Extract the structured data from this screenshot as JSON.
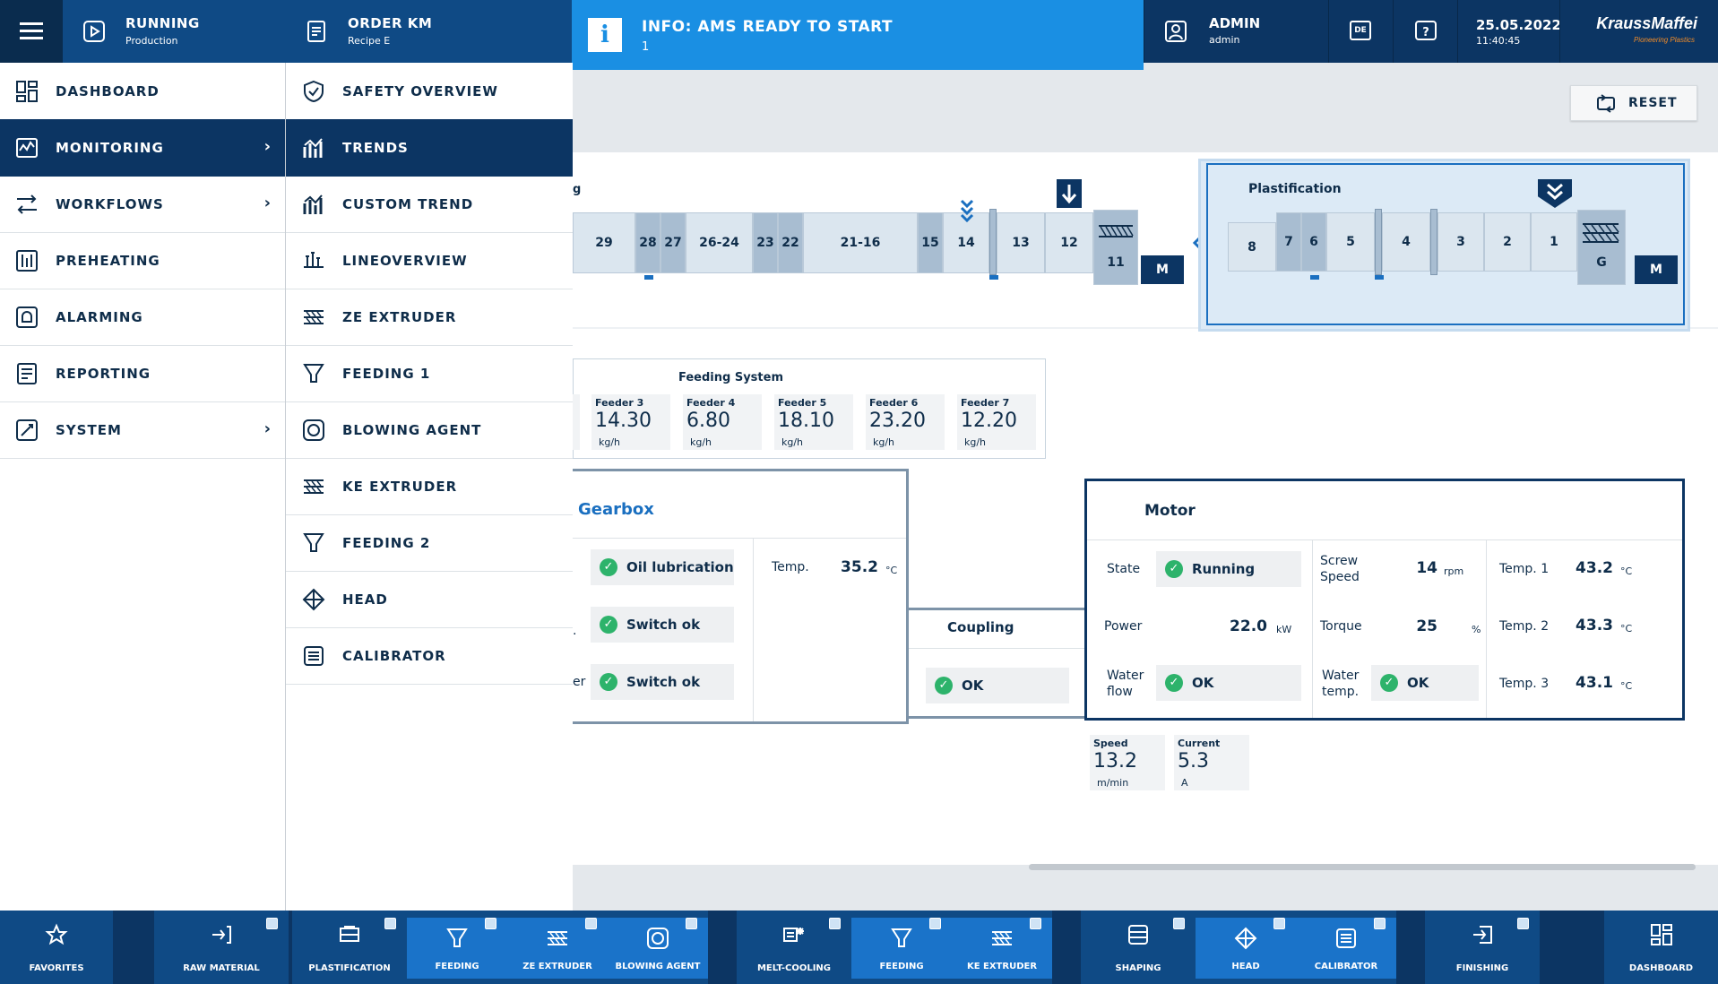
{
  "header": {
    "status": {
      "title": "RUNNING",
      "subtitle": "Production"
    },
    "order": {
      "title": "ORDER KM",
      "subtitle": "Recipe E"
    },
    "info": {
      "title": "INFO: AMS READY TO START",
      "subtitle": "1"
    },
    "user": {
      "title": "ADMIN",
      "subtitle": "admin"
    },
    "language": "DE",
    "date": "25.05.2022",
    "time": "11:40:45",
    "brand": "KraussMaffei",
    "brand_tagline": "Pioneering Plastics"
  },
  "main_menu": [
    {
      "label": "DASHBOARD",
      "icon": "dashboard-icon"
    },
    {
      "label": "MONITORING",
      "icon": "monitoring-icon",
      "selected": true
    },
    {
      "label": "WORKFLOWS",
      "icon": "workflows-icon"
    },
    {
      "label": "PREHEATING",
      "icon": "preheating-icon"
    },
    {
      "label": "ALARMING",
      "icon": "alarming-icon"
    },
    {
      "label": "REPORTING",
      "icon": "reporting-icon"
    },
    {
      "label": "SYSTEM",
      "icon": "system-icon"
    }
  ],
  "sub_menu": [
    {
      "label": "SAFETY OVERVIEW",
      "icon": "shield-check-icon"
    },
    {
      "label": "TRENDS",
      "icon": "trends-icon",
      "selected": true
    },
    {
      "label": "CUSTOM TREND",
      "icon": "custom-trend-icon"
    },
    {
      "label": "LINEOVERVIEW",
      "icon": "line-overview-icon"
    },
    {
      "label": "ZE EXTRUDER",
      "icon": "ze-extruder-icon"
    },
    {
      "label": "FEEDING 1",
      "icon": "feeding-icon"
    },
    {
      "label": "BLOWING AGENT",
      "icon": "blowing-agent-icon"
    },
    {
      "label": "KE EXTRUDER",
      "icon": "ke-extruder-icon"
    },
    {
      "label": "FEEDING 2",
      "icon": "feeding-icon"
    },
    {
      "label": "HEAD",
      "icon": "head-icon"
    },
    {
      "label": "CALIBRATOR",
      "icon": "calibrator-icon"
    }
  ],
  "reset_label": "RESET",
  "process": {
    "left_partial_label": "g",
    "zones_left": [
      "29",
      "28",
      "27",
      "26-24",
      "23",
      "22",
      "21-16",
      "15",
      "14",
      "13",
      "12",
      "11"
    ],
    "motor_label": "M",
    "plastification_title": "Plastification",
    "zones_right": [
      "8",
      "7",
      "6",
      "5",
      "4",
      "3",
      "2",
      "1",
      "G"
    ]
  },
  "feeding_system": {
    "title": "Feeding System",
    "feeders": [
      {
        "label": "Feeder 3",
        "value": "14.30",
        "unit": "kg/h"
      },
      {
        "label": "Feeder 4",
        "value": "6.80",
        "unit": "kg/h"
      },
      {
        "label": "Feeder 5",
        "value": "18.10",
        "unit": "kg/h"
      },
      {
        "label": "Feeder 6",
        "value": "23.20",
        "unit": "kg/h"
      },
      {
        "label": "Feeder 7",
        "value": "12.20",
        "unit": "kg/h"
      }
    ]
  },
  "gearbox": {
    "title": "Gearbox",
    "status": [
      "Oil lubrication",
      "Switch ok",
      "Switch ok"
    ],
    "partial_labels": [
      ".",
      "er"
    ],
    "temp_label": "Temp.",
    "temp_value": "35.2",
    "temp_unit": "°C"
  },
  "coupling": {
    "title": "Coupling",
    "status": "OK"
  },
  "motor": {
    "title": "Motor",
    "state_label": "State",
    "state_value": "Running",
    "power_label": "Power",
    "power_value": "22.0",
    "power_unit": "kW",
    "waterflow_label": "Water flow",
    "waterflow_value": "OK",
    "screw_label": "Screw Speed",
    "screw_value": "14",
    "screw_unit": "rpm",
    "torque_label": "Torque",
    "torque_value": "25",
    "torque_unit": "%",
    "watertemp_label": "Water temp.",
    "watertemp_value": "OK",
    "temp1_label": "Temp. 1",
    "temp1_value": "43.2",
    "temp1_unit": "°C",
    "temp2_label": "Temp. 2",
    "temp2_value": "43.3",
    "temp2_unit": "°C",
    "temp3_label": "Temp. 3",
    "temp3_value": "43.1",
    "temp3_unit": "°C"
  },
  "haul_off": {
    "speed_label": "Speed",
    "speed_value": "13.2",
    "speed_unit": "m/min",
    "current_label": "Current",
    "current_value": "5.3",
    "current_unit": "A"
  },
  "bottom_bar": [
    {
      "label": "FAVORITES",
      "icon": "star-icon"
    },
    {
      "label": "RAW MATERIAL",
      "icon": "raw-material-icon"
    },
    {
      "label": "PLASTIFICATION",
      "icon": "plastification-icon"
    },
    {
      "label": "FEEDING",
      "icon": "feeding-icon"
    },
    {
      "label": "ZE EXTRUDER",
      "icon": "ze-extruder-icon"
    },
    {
      "label": "BLOWING AGENT",
      "icon": "blowing-agent-icon"
    },
    {
      "label": "MELT-COOLING",
      "icon": "melt-cooling-icon"
    },
    {
      "label": "FEEDING",
      "icon": "feeding-icon"
    },
    {
      "label": "KE EXTRUDER",
      "icon": "ke-extruder-icon"
    },
    {
      "label": "SHAPING",
      "icon": "shaping-icon"
    },
    {
      "label": "HEAD",
      "icon": "head-icon"
    },
    {
      "label": "CALIBRATOR",
      "icon": "calibrator-icon"
    },
    {
      "label": "FINISHING",
      "icon": "finishing-icon"
    },
    {
      "label": "DASHBOARD",
      "icon": "dashboard-icon"
    }
  ],
  "colors": {
    "header": "#0c3a66",
    "info": "#1a8fe3",
    "selected": "#0c3563",
    "ok": "#2db36b",
    "accent": "#1a6fc0"
  }
}
